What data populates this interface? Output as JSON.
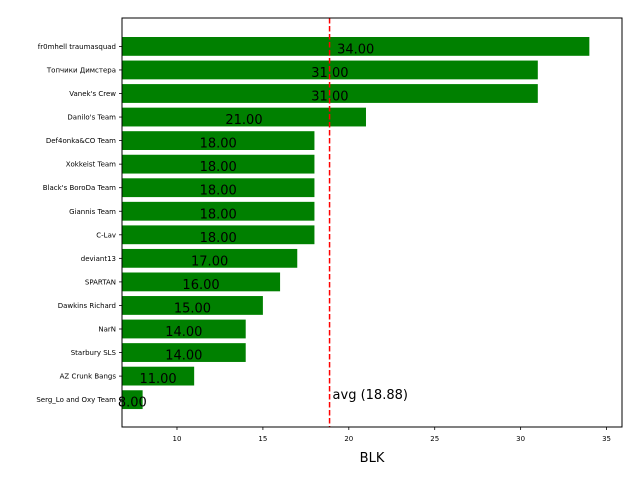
{
  "chart_data": {
    "type": "bar",
    "orientation": "horizontal",
    "title": "",
    "xlabel": "BLK",
    "ylabel": "",
    "categories": [
      "fr0mhell traumasquad",
      "Топчики Димстера",
      "Vanek's Crew",
      "Danilo's Team",
      "Def4onka&CO Team",
      "Xokkeist Team",
      "Black's BoroDa Team",
      "Giannis Team",
      "C-Lav",
      "deviant13",
      "SPARTAN",
      "Dawkins Richard",
      "NarN",
      "Starbury SLS",
      "AZ Crunk Bangs",
      "Serg_Lo and Oxy Team"
    ],
    "values": [
      34,
      31,
      31,
      21,
      18,
      18,
      18,
      18,
      18,
      17,
      16,
      15,
      14,
      14,
      11,
      8
    ],
    "value_labels": [
      "34.00",
      "31.00",
      "31.00",
      "21.00",
      "18.00",
      "18.00",
      "18.00",
      "18.00",
      "18.00",
      "17.00",
      "16.00",
      "15.00",
      "14.00",
      "14.00",
      "11.00",
      "8.00"
    ],
    "xlim": [
      6.8,
      35.9
    ],
    "xticks": [
      10,
      15,
      20,
      25,
      30,
      35
    ],
    "xtick_labels": [
      "10",
      "15",
      "20",
      "25",
      "30",
      "35"
    ],
    "grid": false,
    "bar_color": "#008000",
    "reference_line": {
      "value": 18.88,
      "label": "avg (18.88)",
      "color": "#ff0000",
      "style": "dashed"
    }
  }
}
